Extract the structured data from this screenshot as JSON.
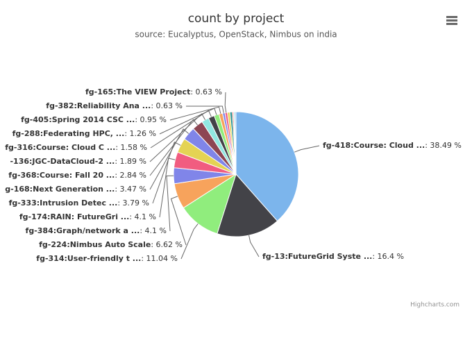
{
  "chart_data": {
    "type": "pie",
    "title": "count by project",
    "subtitle": "source: Eucalyptus, OpenStack, Nimbus on india",
    "credits": "Highcharts.com",
    "categories": [
      "fg-418:Course: Cloud ...",
      "fg-13:FutureGrid Syste ...",
      "fg-314:User-friendly t ...",
      "fg-224:Nimbus Auto Scale",
      "fg-384:Graph/network a ...",
      "fg-174:RAIN: FutureGri ...",
      "fg-333:Intrusion Detec ...",
      "g-168:Next Generation ...",
      "fg-368:Course: Fall 20 ...",
      "-136:JGC-DataCloud-2 ...",
      "fg-316:Course: Cloud C ...",
      "fg-288:Federating HPC, ...",
      "fg-405:Spring 2014 CSC ...",
      "fg-382:Reliability Ana ...",
      "fg-165:The VIEW Project",
      null,
      null,
      null,
      null,
      null
    ],
    "values": [
      38.49,
      16.4,
      11.04,
      6.62,
      4.1,
      4.1,
      3.79,
      3.47,
      2.84,
      1.89,
      1.58,
      1.26,
      0.95,
      0.63,
      0.63,
      0.63,
      0.63,
      0.32,
      0.32,
      0.31
    ],
    "value_labels": [
      ": 38.49 %",
      ": 16.4 %",
      ": 11.04 %",
      ": 6.62 %",
      ": 4.1 %",
      ": 4.1 %",
      ": 3.79 %",
      ": 3.47 %",
      ": 2.84 %",
      ": 1.89 %",
      ": 1.58 %",
      ": 1.26 %",
      ": 0.95 %",
      ": 0.63 %",
      ": 0.63 %",
      null,
      null,
      null,
      null,
      null
    ],
    "colors": [
      "#7cb5ec",
      "#434348",
      "#90ed7d",
      "#f7a35c",
      "#8085e9",
      "#f15c80",
      "#e4d354",
      "#8085e9",
      "#8d4653",
      "#91e8e1",
      "#434348",
      "#90ed7d",
      "#f7a35c",
      "#8085e9",
      "#f15c80",
      "#e4d354",
      "#2b908f",
      "#f45b5b",
      "#91e8e1",
      "#7cb5ec"
    ]
  }
}
